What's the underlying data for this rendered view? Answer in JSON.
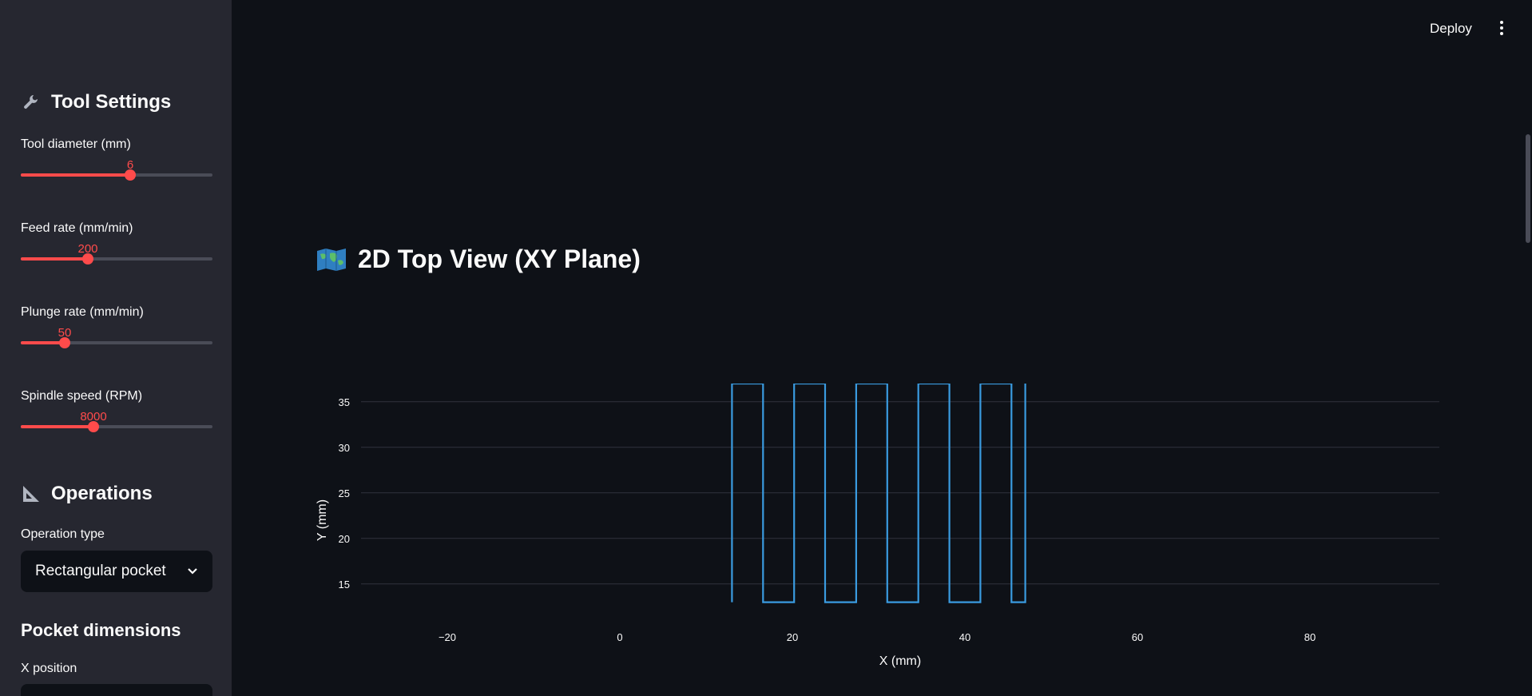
{
  "header": {
    "deploy_label": "Deploy"
  },
  "sidebar": {
    "tool_settings_title": "Tool Settings",
    "sliders": [
      {
        "label": "Tool diameter (mm)",
        "value": "6",
        "fraction": 0.57
      },
      {
        "label": "Feed rate (mm/min)",
        "value": "200",
        "fraction": 0.35
      },
      {
        "label": "Plunge rate (mm/min)",
        "value": "50",
        "fraction": 0.23
      },
      {
        "label": "Spindle speed (RPM)",
        "value": "8000",
        "fraction": 0.38
      }
    ],
    "operations_title": "Operations",
    "operation_type_label": "Operation type",
    "operation_type_value": "Rectangular pocket",
    "pocket_dimensions_title": "Pocket dimensions",
    "x_position_label": "X position"
  },
  "main": {
    "title": "2D Top View (XY Plane)"
  },
  "chart_data": {
    "type": "line",
    "xlabel": "X (mm)",
    "ylabel": "Y (mm)",
    "xlim": [
      -30,
      95
    ],
    "ylim": [
      12,
      37
    ],
    "xticks": [
      -20,
      0,
      20,
      40,
      60,
      80
    ],
    "yticks": [
      15,
      20,
      25,
      30,
      35
    ],
    "xtick_labels": [
      "−20",
      "0",
      "20",
      "40",
      "60",
      "80"
    ],
    "ytick_labels": [
      "15",
      "20",
      "25",
      "30",
      "35"
    ],
    "grid": "horizontal",
    "color": "#3a9be0",
    "series": [
      {
        "x": [
          13,
          13,
          16.6,
          16.6,
          20.2,
          20.2,
          23.8,
          23.8,
          27.4,
          27.4,
          31,
          31,
          34.6,
          34.6,
          38.2,
          38.2,
          41.8,
          41.8,
          45.4,
          45.4,
          47,
          47
        ],
        "y": [
          13,
          37,
          37,
          13,
          13,
          37,
          37,
          13,
          13,
          37,
          37,
          13,
          13,
          37,
          37,
          13,
          13,
          37,
          37,
          13,
          13,
          37
        ]
      }
    ]
  }
}
